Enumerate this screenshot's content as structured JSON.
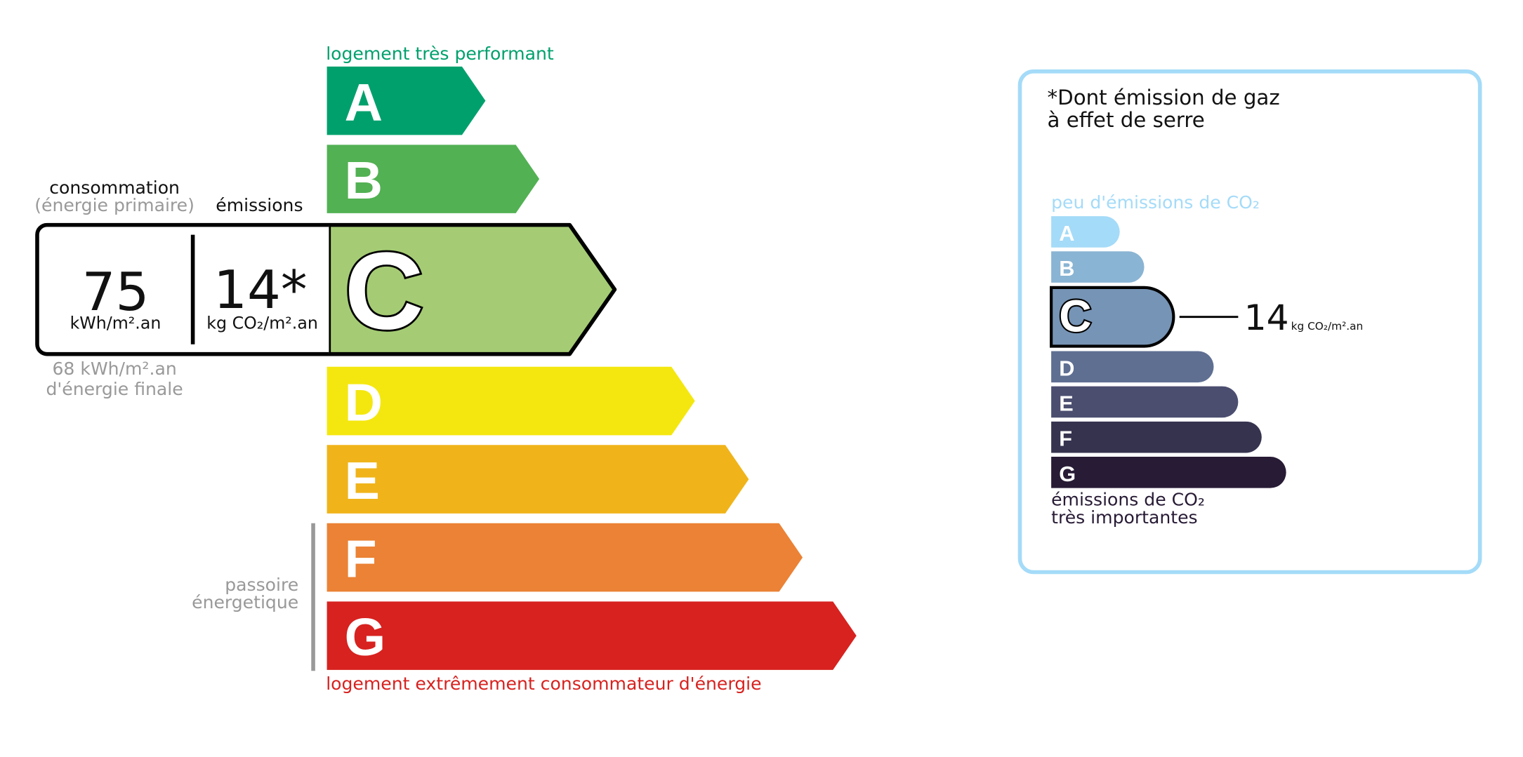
{
  "energy": {
    "top_label": "logement très performant",
    "bottom_label": "logement extrêmement consommateur d'énergie",
    "classes": [
      "A",
      "B",
      "C",
      "D",
      "E",
      "F",
      "G"
    ],
    "colors": [
      "#00a06d",
      "#52b153",
      "#a5cc74",
      "#f4e70f",
      "#f0b41a",
      "#eb8235",
      "#d7221f"
    ],
    "current_class": "C",
    "consumption_label": "consommation",
    "consumption_sublabel": "(énergie primaire)",
    "emissions_label": "émissions",
    "consumption_value": "75",
    "consumption_unit": "kWh/m².an",
    "emissions_value": "14*",
    "emissions_unit": "kg CO₂/m².an",
    "final_energy": [
      "68 kWh/m².an",
      "d'énergie finale"
    ],
    "passoire": [
      "passoire",
      "énergetique"
    ]
  },
  "ges": {
    "title": [
      "*Dont émission de gaz",
      "à effet de serre"
    ],
    "top_label": "peu d'émissions de CO₂",
    "classes": [
      "A",
      "B",
      "C",
      "D",
      "E",
      "F",
      "G"
    ],
    "colors": [
      "#a4dbf8",
      "#8ab4d3",
      "#7694b5",
      "#5f6f92",
      "#4b4e6f",
      "#36334f",
      "#281b35"
    ],
    "current_class": "C",
    "value": "14",
    "unit": "kg CO₂/m².an",
    "bottom_label": [
      "émissions de CO₂",
      "très importantes"
    ]
  }
}
